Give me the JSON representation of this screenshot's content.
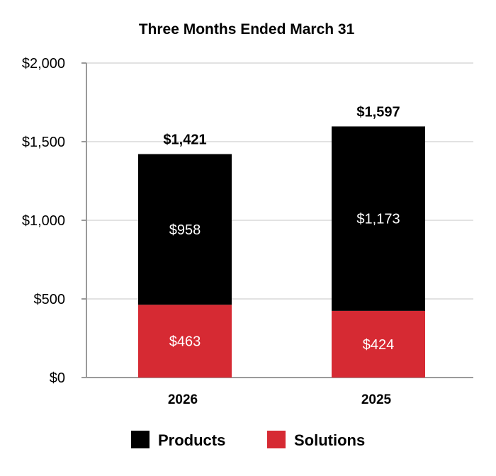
{
  "chart_data": {
    "type": "bar",
    "stacked": true,
    "title": "Three Months Ended March 31",
    "categories": [
      "2026",
      "2025"
    ],
    "series": [
      {
        "name": "Solutions",
        "values": [
          463,
          424
        ],
        "labels": [
          "$463",
          "$424"
        ],
        "color": "#d62a33"
      },
      {
        "name": "Products",
        "values": [
          958,
          1173
        ],
        "labels": [
          "$958",
          "$1,173"
        ],
        "color": "#000000"
      }
    ],
    "totals": [
      1421,
      1597
    ],
    "total_labels": [
      "$1,421",
      "$1,597"
    ],
    "ylim": [
      0,
      2000
    ],
    "yticks": [
      0,
      500,
      1000,
      1500,
      2000
    ],
    "ytick_labels": [
      "$0",
      "$500",
      "$1,000",
      "$1,500",
      "$2,000"
    ],
    "grid": true,
    "legend": {
      "placement": "bottom",
      "items": [
        {
          "label": "Products",
          "color": "#000000"
        },
        {
          "label": "Solutions",
          "color": "#d62a33"
        }
      ]
    }
  }
}
